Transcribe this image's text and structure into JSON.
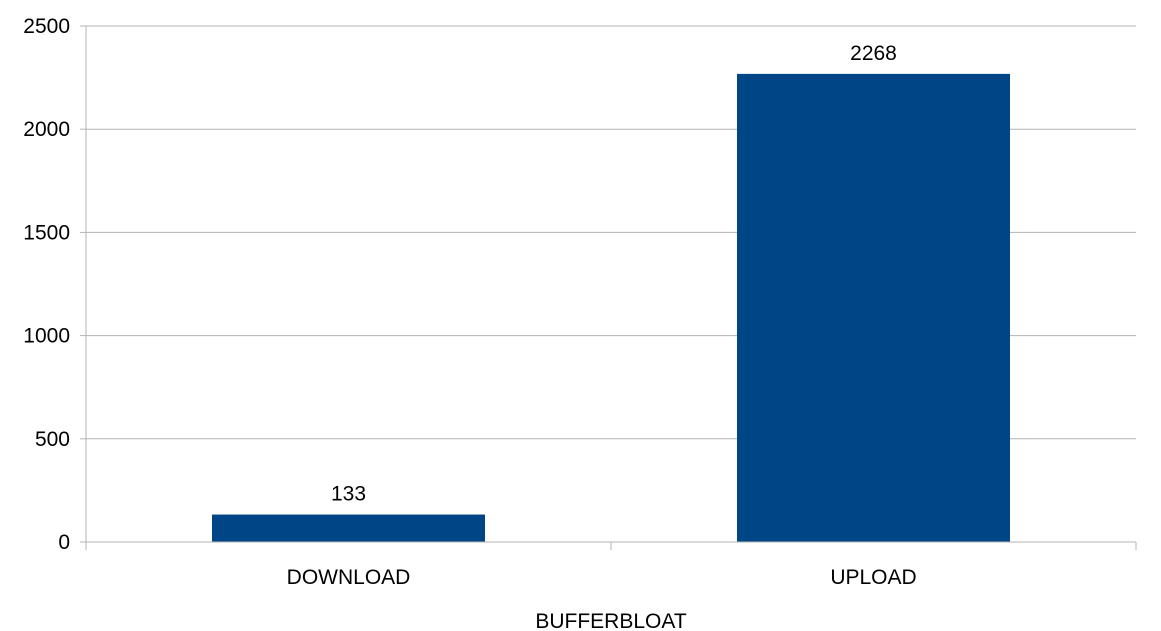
{
  "chart_data": {
    "type": "bar",
    "title": "",
    "xlabel": "BUFFERBLOAT",
    "ylabel": "",
    "categories": [
      "DOWNLOAD",
      "UPLOAD"
    ],
    "values": [
      133,
      2268
    ],
    "data_labels": [
      "133",
      "2268"
    ],
    "ylim": [
      0,
      2500
    ],
    "yticks": [
      0,
      500,
      1000,
      1500,
      2000,
      2500
    ],
    "grid": true,
    "legend": "none",
    "bar_color": "#004586",
    "grid_color": "#b3b3b3",
    "axis_color": "#b3b3b3"
  }
}
